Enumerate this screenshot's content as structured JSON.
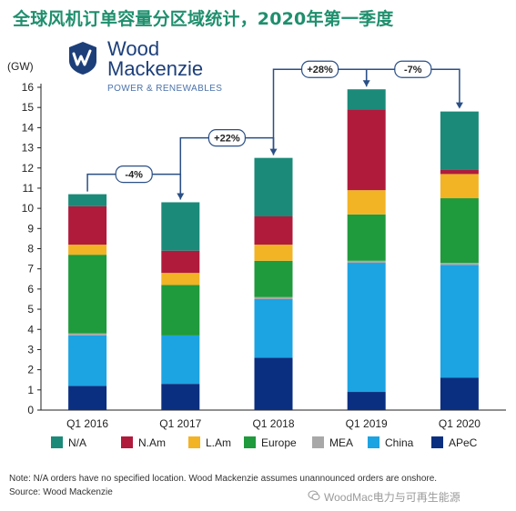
{
  "header": {
    "title": "全球风机订单容量分区域统计，2020年第一季度"
  },
  "logo": {
    "name_line1": "Wood",
    "name_line2": "Mackenzie",
    "subtitle": "POWER & RENEWABLES"
  },
  "footer": {
    "note": "Note: N/A orders have no specified location. Wood Mackenzie assumes unannounced orders are onshore.",
    "source": "Source: Wood Mackenzie",
    "watermark": "WoodMac电力与可再生能源"
  },
  "colors": {
    "N/A": "#1b8a79",
    "N.Am": "#b01b3c",
    "L.Am": "#f2b325",
    "Europe": "#1f9a3c",
    "MEA": "#a8a8a8",
    "China": "#1ca3e2",
    "APeC": "#0b2f80",
    "title": "#1f8f6d",
    "arrow": "#2a4f86"
  },
  "chart_data": {
    "type": "bar",
    "stacked": true,
    "ylabel": "(GW)",
    "ylim": [
      0,
      16
    ],
    "yticks": [
      0,
      1,
      2,
      3,
      4,
      5,
      6,
      7,
      8,
      9,
      10,
      11,
      12,
      13,
      14,
      15,
      16
    ],
    "categories": [
      "Q1 2016",
      "Q1 2017",
      "Q1 2018",
      "Q1 2019",
      "Q1 2020"
    ],
    "series": [
      {
        "name": "APeC",
        "values": [
          1.2,
          1.3,
          2.6,
          0.9,
          1.6
        ]
      },
      {
        "name": "China",
        "values": [
          2.5,
          2.4,
          2.9,
          6.4,
          5.6
        ]
      },
      {
        "name": "MEA",
        "values": [
          0.1,
          0.0,
          0.1,
          0.1,
          0.1
        ]
      },
      {
        "name": "Europe",
        "values": [
          3.9,
          2.5,
          1.8,
          2.3,
          3.2
        ]
      },
      {
        "name": "L.Am",
        "values": [
          0.5,
          0.6,
          0.8,
          1.2,
          1.2
        ]
      },
      {
        "name": "N.Am",
        "values": [
          1.9,
          1.1,
          1.4,
          4.0,
          0.2
        ]
      },
      {
        "name": "N/A",
        "values": [
          0.6,
          2.4,
          2.9,
          1.0,
          2.9
        ]
      }
    ],
    "totals": [
      10.7,
      10.3,
      12.5,
      15.9,
      14.8
    ],
    "annotations": [
      {
        "from": "Q1 2016",
        "to": "Q1 2017",
        "label": "-4%"
      },
      {
        "from": "Q1 2017",
        "to": "Q1 2018",
        "label": "+22%"
      },
      {
        "from": "Q1 2018",
        "to": "Q1 2019",
        "label": "+28%"
      },
      {
        "from": "Q1 2019",
        "to": "Q1 2020",
        "label": "-7%"
      }
    ],
    "legend": [
      "N/A",
      "N.Am",
      "L.Am",
      "Europe",
      "MEA",
      "China",
      "APeC"
    ],
    "legend_position": "bottom",
    "grid": false
  }
}
